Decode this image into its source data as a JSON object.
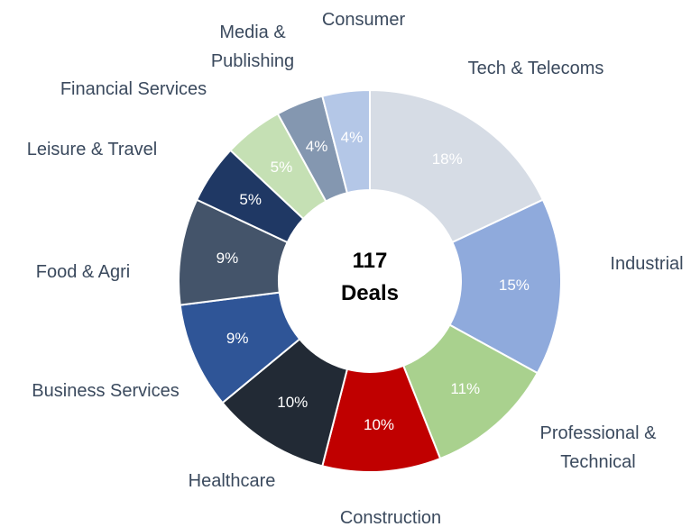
{
  "chart_data": {
    "type": "donut",
    "center_label": "117 Deals",
    "categories": [
      "Tech & Telecoms",
      "Industrial",
      "Professional & Technical",
      "Construction",
      "Healthcare",
      "Business Services",
      "Food & Agri",
      "Leisure & Travel",
      "Financial Services",
      "Media & Publishing",
      "Consumer"
    ],
    "values": [
      18,
      15,
      11,
      10,
      10,
      9,
      9,
      5,
      5,
      4,
      4
    ],
    "value_labels": [
      "18%",
      "15%",
      "11%",
      "10%",
      "10%",
      "9%",
      "9%",
      "5%",
      "5%",
      "4%",
      "4%"
    ],
    "colors": [
      "#d6dce5",
      "#8faadc",
      "#a9d18e",
      "#c00000",
      "#222a35",
      "#2f5597",
      "#44546a",
      "#1f3864",
      "#c5e0b4",
      "#8497b0",
      "#b4c7e7"
    ]
  }
}
